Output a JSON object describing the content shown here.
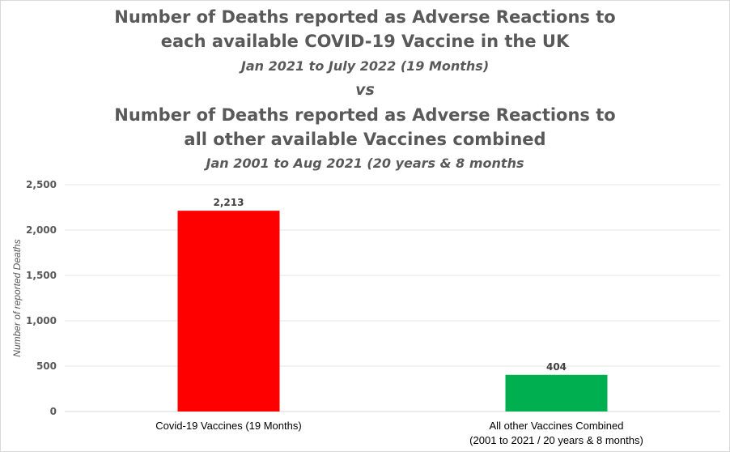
{
  "title": {
    "line1": "Number of Deaths reported as Adverse Reactions to",
    "line2": "each available COVID-19 Vaccine in the UK",
    "line3": "Jan 2021 to July 2022 (19 Months)",
    "vs": "vs",
    "line4": "Number of Deaths reported as Adverse Reactions to",
    "line5": "all other available Vaccines combined",
    "line6": "Jan 2001 to Aug 2021 (20 years & 8 months"
  },
  "chart_data": {
    "type": "bar",
    "categories": [
      [
        "Covid-19 Vaccines (19 Months)"
      ],
      [
        "All other Vaccines Combined",
        "(2001 to 2021 / 20 years & 8 months)"
      ]
    ],
    "values": [
      2213,
      404
    ],
    "data_labels": [
      "2,213",
      "404"
    ],
    "colors": [
      "#ff0000",
      "#00b050"
    ],
    "ylabel": "Number of reported Deaths",
    "ylim": [
      0,
      2500
    ],
    "yticks": [
      0,
      500,
      1000,
      1500,
      2000,
      2500
    ],
    "ytick_labels": [
      "0",
      "500",
      "1,000",
      "1,500",
      "2,000",
      "2,500"
    ],
    "grid": true,
    "gridline_color": "#e6e6e6",
    "axis_color": "#d9d9d9",
    "legend": "none"
  }
}
